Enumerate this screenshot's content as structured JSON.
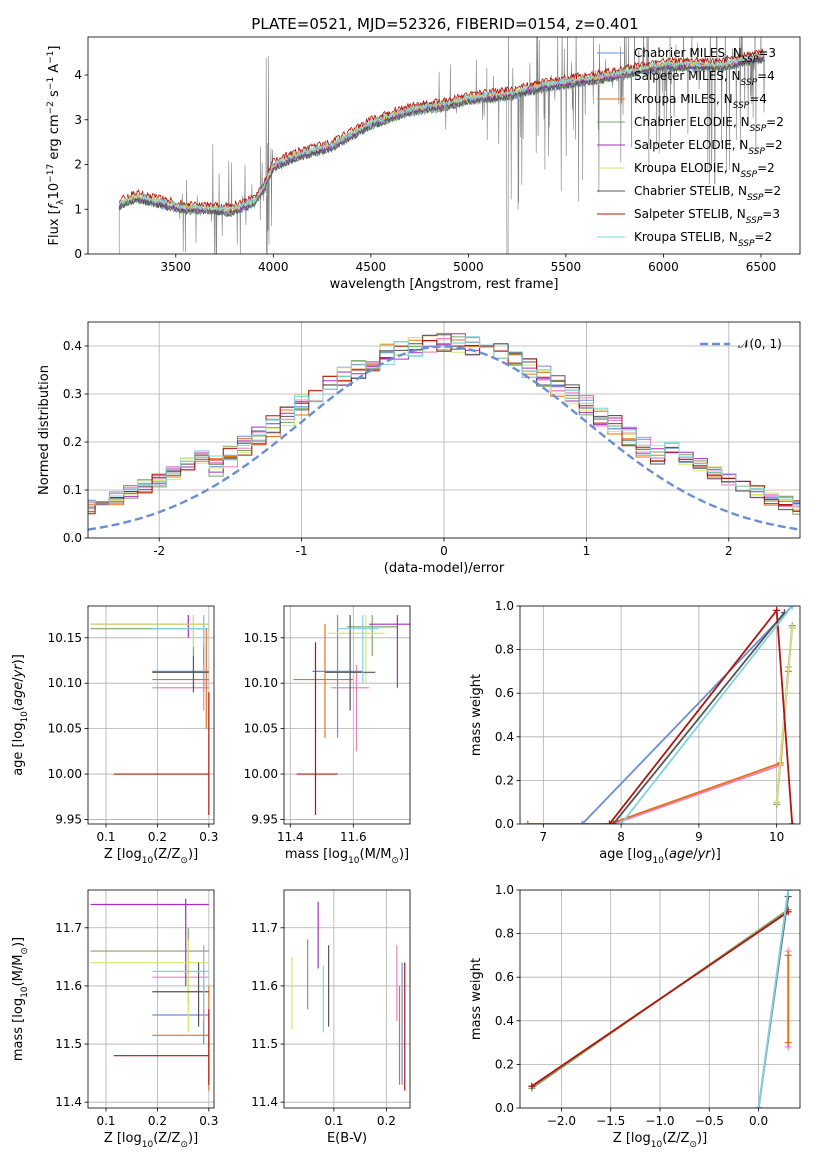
{
  "title": "PLATE=0521, MJD=52326, FIBERID=0154, z=0.401",
  "colors": {
    "data": "#808080",
    "Chabrier MILES": "#6a8fd3",
    "Salpeter MILES": "#f080bf",
    "Kroupa MILES": "#e6731a",
    "Chabrier ELODIE": "#7aa86a",
    "Salpeter ELODIE": "#a52ec0",
    "Kroupa ELODIE": "#d8e66e",
    "Chabrier STELIB": "#555555",
    "Salpeter STELIB": "#b0150e",
    "Kroupa STELIB": "#7fd3df",
    "normal": "#6a8fd3"
  },
  "legend": [
    {
      "pre": "Chabrier MILES, N",
      "sub": "SSP",
      "post": "=3",
      "key": "Chabrier MILES"
    },
    {
      "pre": "Salpeter MILES, N",
      "sub": "SSP",
      "post": "=4",
      "key": "Salpeter MILES"
    },
    {
      "pre": "Kroupa MILES, N",
      "sub": "SSP",
      "post": "=4",
      "key": "Kroupa MILES"
    },
    {
      "pre": "Chabrier ELODIE, N",
      "sub": "SSP",
      "post": "=2",
      "key": "Chabrier ELODIE"
    },
    {
      "pre": "Salpeter ELODIE, N",
      "sub": "SSP",
      "post": "=2",
      "key": "Salpeter ELODIE"
    },
    {
      "pre": "Kroupa ELODIE, N",
      "sub": "SSP",
      "post": "=2",
      "key": "Kroupa ELODIE"
    },
    {
      "pre": "Chabrier STELIB, N",
      "sub": "SSP",
      "post": "=2",
      "key": "Chabrier STELIB"
    },
    {
      "pre": "Salpeter STELIB, N",
      "sub": "SSP",
      "post": "=3",
      "key": "Salpeter STELIB"
    },
    {
      "pre": "Kroupa STELIB, N",
      "sub": "SSP",
      "post": "=2",
      "key": "Kroupa STELIB"
    }
  ],
  "chart_data": [
    {
      "id": "spectrum",
      "type": "line",
      "xlabel": "wavelength [Angstrom, rest frame]",
      "ylabel_parts": {
        "pre": "Flux [",
        "f": "f",
        "fsub": "λ",
        "mid": "10",
        "e1": "−17",
        "erg": " erg cm",
        "e2": "−2",
        "s": " s",
        "e3": "−1",
        "A": " A",
        "e4": "−1",
        "post": "]"
      },
      "xlim": [
        3050,
        6700
      ],
      "ylim": [
        0,
        4.85
      ],
      "xticks": [
        3500,
        4000,
        4500,
        5000,
        5500,
        6000,
        6500
      ],
      "yticks": [
        0,
        1,
        2,
        3,
        4
      ],
      "model_continuum": [
        [
          3210,
          1.1
        ],
        [
          3300,
          1.25
        ],
        [
          3400,
          1.15
        ],
        [
          3550,
          1.0
        ],
        [
          3650,
          1.0
        ],
        [
          3780,
          0.95
        ],
        [
          3900,
          1.15
        ],
        [
          3950,
          1.45
        ],
        [
          4000,
          1.95
        ],
        [
          4100,
          2.15
        ],
        [
          4300,
          2.4
        ],
        [
          4500,
          2.9
        ],
        [
          4700,
          3.2
        ],
        [
          4860,
          3.3
        ],
        [
          5000,
          3.45
        ],
        [
          5200,
          3.55
        ],
        [
          5400,
          3.75
        ],
        [
          5700,
          3.95
        ],
        [
          6000,
          4.2
        ],
        [
          6300,
          4.2
        ],
        [
          6500,
          4.4
        ]
      ]
    },
    {
      "id": "residuals",
      "type": "histogram",
      "xlabel": "(data-model)/error",
      "ylabel": "Normed distribution",
      "xlim": [
        -2.5,
        2.5
      ],
      "ylim": [
        0,
        0.45
      ],
      "xticks": [
        -2,
        -1,
        0,
        1,
        2
      ],
      "yticks": [
        0.0,
        0.1,
        0.2,
        0.3,
        0.4
      ],
      "bin_width": 0.1,
      "legend": "𝒩(0, 1)"
    },
    {
      "id": "age_vs_Z",
      "type": "scatter",
      "xlabel_parts": {
        "pre": "Z [log",
        "sub": "10",
        "post": "(Z/Z",
        "sun": "⊙",
        "end": ")]"
      },
      "ylabel_parts": {
        "pre": "age  [log",
        "sub": "10",
        "post": "(age/yr)]"
      },
      "xlim": [
        0.065,
        0.31
      ],
      "ylim": [
        9.945,
        10.185
      ],
      "xticks": [
        0.1,
        0.2,
        0.3
      ],
      "yticks": [
        9.95,
        10.0,
        10.05,
        10.1,
        10.15
      ],
      "points": [
        {
          "key": "Chabrier MILES",
          "x": 0.29,
          "y": 10.113,
          "x0": 0.19,
          "x1": 0.3,
          "y0": 10.09,
          "y1": 10.175
        },
        {
          "key": "Salpeter MILES",
          "x": 0.29,
          "y": 10.095,
          "x0": 0.19,
          "x1": 0.3,
          "y0": 10.07,
          "y1": 10.12
        },
        {
          "key": "Kroupa MILES",
          "x": 0.295,
          "y": 10.104,
          "x0": 0.19,
          "x1": 0.3,
          "y0": 10.05,
          "y1": 10.16
        },
        {
          "key": "Chabrier ELODIE",
          "x": 0.27,
          "y": 10.16,
          "x0": 0.07,
          "x1": 0.3,
          "y0": 10.13,
          "y1": 10.175
        },
        {
          "key": "Salpeter ELODIE",
          "x": 0.26,
          "y": 10.165,
          "x0": 0.07,
          "x1": 0.3,
          "y0": 10.15,
          "y1": 10.175
        },
        {
          "key": "Kroupa ELODIE",
          "x": 0.27,
          "y": 10.165,
          "x0": 0.07,
          "x1": 0.3,
          "y0": 10.14,
          "y1": 10.175
        },
        {
          "key": "Chabrier STELIB",
          "x": 0.27,
          "y": 10.112,
          "x0": 0.19,
          "x1": 0.3,
          "y0": 10.09,
          "y1": 10.13
        },
        {
          "key": "Salpeter STELIB",
          "x": 0.3,
          "y": 10.0,
          "x0": 0.115,
          "x1": 0.3,
          "y0": 9.955,
          "y1": 10.09
        },
        {
          "key": "Kroupa STELIB",
          "x": 0.29,
          "y": 10.16,
          "x0": 0.19,
          "x1": 0.3,
          "y0": 10.14,
          "y1": 10.175
        }
      ]
    },
    {
      "id": "age_vs_mass",
      "type": "scatter",
      "xlabel_parts": {
        "pre": "mass [log",
        "sub": "10",
        "post": "(M/M",
        "sun": "⊙",
        "end": ")]"
      },
      "xlim": [
        11.38,
        11.78
      ],
      "ylim": [
        9.945,
        10.185
      ],
      "xticks": [
        11.4,
        11.6
      ],
      "yticks": [
        9.95,
        10.0,
        10.05,
        10.1,
        10.15
      ],
      "points": [
        {
          "key": "Chabrier MILES",
          "x": 11.55,
          "y": 10.113,
          "x0": 11.47,
          "x1": 11.63,
          "y0": 10.04,
          "y1": 10.175
        },
        {
          "key": "Salpeter MILES",
          "x": 11.61,
          "y": 10.095,
          "x0": 11.53,
          "x1": 11.65,
          "y0": 10.025,
          "y1": 10.12
        },
        {
          "key": "Kroupa MILES",
          "x": 11.51,
          "y": 10.104,
          "x0": 11.41,
          "x1": 11.6,
          "y0": 10.04,
          "y1": 10.165
        },
        {
          "key": "Chabrier ELODIE",
          "x": 11.66,
          "y": 10.162,
          "x0": 11.58,
          "x1": 11.74,
          "y0": 10.13,
          "y1": 10.175
        },
        {
          "key": "Salpeter ELODIE",
          "x": 11.74,
          "y": 10.165,
          "x0": 11.65,
          "x1": 11.78,
          "y0": 10.095,
          "y1": 10.175
        },
        {
          "key": "Kroupa ELODIE",
          "x": 11.64,
          "y": 10.155,
          "x0": 11.52,
          "x1": 11.7,
          "y0": 10.1,
          "y1": 10.175
        },
        {
          "key": "Chabrier STELIB",
          "x": 11.59,
          "y": 10.112,
          "x0": 11.51,
          "x1": 11.67,
          "y0": 10.07,
          "y1": 10.175
        },
        {
          "key": "Salpeter STELIB",
          "x": 11.48,
          "y": 10.0,
          "x0": 11.42,
          "x1": 11.55,
          "y0": 9.955,
          "y1": 10.145
        },
        {
          "key": "Kroupa STELIB",
          "x": 11.63,
          "y": 10.16,
          "x0": 11.55,
          "x1": 11.68,
          "y0": 10.1,
          "y1": 10.175
        }
      ]
    },
    {
      "id": "weight_vs_age",
      "type": "line",
      "xlabel_parts": {
        "pre": "age  [log",
        "sub": "10",
        "post": "(age/yr)]"
      },
      "ylabel": "mass weight",
      "xlim": [
        6.7,
        10.3
      ],
      "ylim": [
        0,
        1.0
      ],
      "xticks": [
        7,
        8,
        9,
        10
      ],
      "yticks": [
        0.0,
        0.2,
        0.4,
        0.6,
        0.8,
        1.0
      ],
      "series": [
        {
          "key": "Chabrier MILES",
          "points": [
            [
              7.5,
              0.0
            ],
            [
              10.2,
              1.0
            ]
          ]
        },
        {
          "key": "Salpeter MILES",
          "points": [
            [
              6.8,
              0.0
            ],
            [
              7.9,
              0.0
            ],
            [
              10.05,
              0.27
            ],
            [
              10.15,
              0.72
            ]
          ]
        },
        {
          "key": "Kroupa MILES",
          "points": [
            [
              6.8,
              0.0
            ],
            [
              7.85,
              0.0
            ],
            [
              10.05,
              0.28
            ],
            [
              10.15,
              0.7
            ]
          ]
        },
        {
          "key": "Chabrier ELODIE",
          "points": [
            [
              10.0,
              0.09
            ],
            [
              10.2,
              0.91
            ]
          ]
        },
        {
          "key": "Salpeter ELODIE",
          "points": [
            [
              10.0,
              0.1
            ],
            [
              10.2,
              0.9
            ]
          ]
        },
        {
          "key": "Kroupa ELODIE",
          "points": [
            [
              10.0,
              0.1
            ],
            [
              10.2,
              0.9
            ]
          ]
        },
        {
          "key": "Chabrier STELIB",
          "points": [
            [
              7.9,
              0.0
            ],
            [
              10.1,
              0.97
            ]
          ]
        },
        {
          "key": "Salpeter STELIB",
          "points": [
            [
              7.85,
              0.0
            ],
            [
              10.0,
              0.98
            ],
            [
              10.2,
              0.0
            ]
          ]
        },
        {
          "key": "Kroupa STELIB",
          "points": [
            [
              8.0,
              0.0
            ],
            [
              10.2,
              1.0
            ]
          ]
        }
      ]
    },
    {
      "id": "mass_vs_Z",
      "type": "scatter",
      "xlabel_parts": {
        "pre": "Z [log",
        "sub": "10",
        "post": "(Z/Z",
        "sun": "⊙",
        "end": ")]"
      },
      "ylabel_parts": {
        "pre": "mass [log",
        "sub": "10",
        "post": "(M/M",
        "sun": "⊙",
        "end": ")]"
      },
      "xlim": [
        0.065,
        0.31
      ],
      "ylim": [
        11.39,
        11.765
      ],
      "xticks": [
        0.1,
        0.2,
        0.3
      ],
      "yticks": [
        11.4,
        11.5,
        11.6,
        11.7
      ],
      "points": [
        {
          "key": "Chabrier MILES",
          "x": 0.29,
          "y": 11.55,
          "x0": 0.19,
          "x1": 0.3,
          "y0": 11.5,
          "y1": 11.63
        },
        {
          "key": "Salpeter MILES",
          "x": 0.29,
          "y": 11.615,
          "x0": 0.19,
          "x1": 0.3,
          "y0": 11.54,
          "y1": 11.67
        },
        {
          "key": "Kroupa MILES",
          "x": 0.3,
          "y": 11.515,
          "x0": 0.19,
          "x1": 0.3,
          "y0": 11.42,
          "y1": 11.6
        },
        {
          "key": "Chabrier ELODIE",
          "x": 0.26,
          "y": 11.66,
          "x0": 0.07,
          "x1": 0.3,
          "y0": 11.57,
          "y1": 11.7
        },
        {
          "key": "Salpeter ELODIE",
          "x": 0.255,
          "y": 11.74,
          "x0": 0.07,
          "x1": 0.3,
          "y0": 11.6,
          "y1": 11.75
        },
        {
          "key": "Kroupa ELODIE",
          "x": 0.26,
          "y": 11.64,
          "x0": 0.07,
          "x1": 0.3,
          "y0": 11.52,
          "y1": 11.68
        },
        {
          "key": "Chabrier STELIB",
          "x": 0.28,
          "y": 11.59,
          "x0": 0.19,
          "x1": 0.3,
          "y0": 11.53,
          "y1": 11.64
        },
        {
          "key": "Salpeter STELIB",
          "x": 0.3,
          "y": 11.48,
          "x0": 0.115,
          "x1": 0.3,
          "y0": 11.43,
          "y1": 11.56
        },
        {
          "key": "Kroupa STELIB",
          "x": 0.29,
          "y": 11.625,
          "x0": 0.19,
          "x1": 0.3,
          "y0": 11.56,
          "y1": 11.65
        }
      ]
    },
    {
      "id": "mass_vs_ebv",
      "type": "scatter",
      "xlabel": "E(B-V)",
      "xlim": [
        0.005,
        0.245
      ],
      "ylim": [
        11.39,
        11.765
      ],
      "xticks": [
        0.1,
        0.2
      ],
      "yticks": [
        11.4,
        11.5,
        11.6,
        11.7
      ],
      "points": [
        {
          "key": "Chabrier MILES",
          "x": 0.23,
          "y": 11.55,
          "x0": 0.23,
          "x1": 0.23,
          "y0": 11.43,
          "y1": 11.64
        },
        {
          "key": "Salpeter MILES",
          "x": 0.22,
          "y": 11.615,
          "x0": 0.22,
          "x1": 0.22,
          "y0": 11.54,
          "y1": 11.67
        },
        {
          "key": "Kroupa MILES",
          "x": 0.225,
          "y": 11.515,
          "x0": 0.225,
          "x1": 0.225,
          "y0": 11.43,
          "y1": 11.6
        },
        {
          "key": "Chabrier ELODIE",
          "x": 0.05,
          "y": 11.62,
          "x0": 0.05,
          "x1": 0.05,
          "y0": 11.56,
          "y1": 11.68
        },
        {
          "key": "Salpeter ELODIE",
          "x": 0.07,
          "y": 11.69,
          "x0": 0.07,
          "x1": 0.07,
          "y0": 11.63,
          "y1": 11.745
        },
        {
          "key": "Kroupa ELODIE",
          "x": 0.02,
          "y": 11.59,
          "x0": 0.02,
          "x1": 0.02,
          "y0": 11.525,
          "y1": 11.65
        },
        {
          "key": "Chabrier STELIB",
          "x": 0.09,
          "y": 11.6,
          "x0": 0.09,
          "x1": 0.09,
          "y0": 11.53,
          "y1": 11.67
        },
        {
          "key": "Salpeter STELIB",
          "x": 0.235,
          "y": 11.53,
          "x0": 0.235,
          "x1": 0.235,
          "y0": 11.42,
          "y1": 11.64
        },
        {
          "key": "Kroupa STELIB",
          "x": 0.08,
          "y": 11.58,
          "x0": 0.08,
          "x1": 0.08,
          "y0": 11.52,
          "y1": 11.635
        }
      ]
    },
    {
      "id": "weight_vs_Z",
      "type": "line",
      "xlabel_parts": {
        "pre": "Z [log",
        "sub": "10",
        "post": "(Z/Z",
        "sun": "⊙",
        "end": ")]"
      },
      "ylabel": "mass weight",
      "xlim": [
        -2.42,
        0.42
      ],
      "ylim": [
        0,
        1.0
      ],
      "xticks": [
        -2.0,
        -1.5,
        -1.0,
        -0.5,
        0.0
      ],
      "yticks": [
        0.0,
        0.2,
        0.4,
        0.6,
        0.8,
        1.0
      ],
      "series": [
        {
          "key": "Chabrier MILES",
          "points": [
            [
              0.0,
              0.0
            ],
            [
              0.3,
              1.0
            ]
          ]
        },
        {
          "key": "Salpeter MILES",
          "points": [
            [
              0.3,
              0.28
            ],
            [
              0.3,
              0.72
            ]
          ]
        },
        {
          "key": "Kroupa MILES",
          "points": [
            [
              0.3,
              0.3
            ],
            [
              0.3,
              0.7
            ]
          ]
        },
        {
          "key": "Chabrier ELODIE",
          "points": [
            [
              -2.3,
              0.09
            ],
            [
              0.3,
              0.91
            ]
          ]
        },
        {
          "key": "Salpeter ELODIE",
          "points": [
            [
              -2.3,
              0.1
            ],
            [
              0.3,
              0.9
            ]
          ]
        },
        {
          "key": "Kroupa ELODIE",
          "points": [
            [
              -2.3,
              0.1
            ],
            [
              0.3,
              0.9
            ]
          ]
        },
        {
          "key": "Chabrier STELIB",
          "points": [
            [
              0.0,
              0.0
            ],
            [
              0.3,
              0.97
            ]
          ]
        },
        {
          "key": "Salpeter STELIB",
          "points": [
            [
              -2.3,
              0.1
            ],
            [
              0.3,
              0.9
            ]
          ]
        },
        {
          "key": "Kroupa STELIB",
          "points": [
            [
              0.0,
              0.0
            ],
            [
              0.3,
              1.0
            ]
          ]
        }
      ]
    }
  ]
}
